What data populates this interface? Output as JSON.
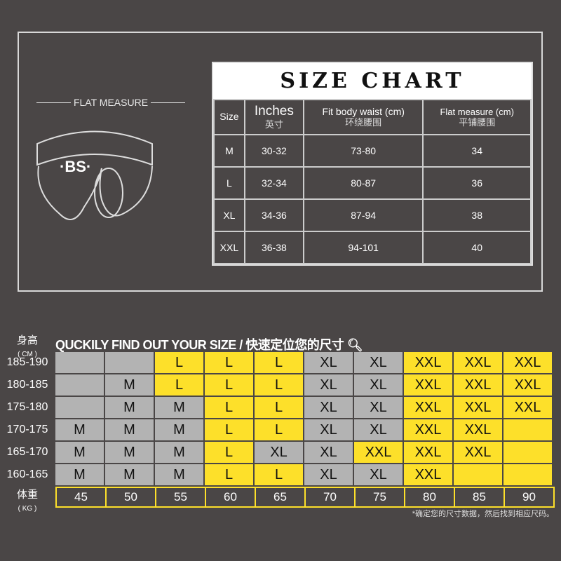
{
  "flat_measure": "FLAT  MEASURE",
  "logo": "BS",
  "size_chart": {
    "title": "SIZE CHART",
    "headers": [
      {
        "en": "Size",
        "zh": ""
      },
      {
        "en": "Inches",
        "zh": "英寸"
      },
      {
        "en": "Fit body waist (cm)",
        "zh": "环绕腰围"
      },
      {
        "en": "Flat measure (cm)",
        "zh": "平铺腰围"
      }
    ],
    "rows": [
      [
        "M",
        "30-32",
        "73-80",
        "34"
      ],
      [
        "L",
        "32-34",
        "80-87",
        "36"
      ],
      [
        "XL",
        "34-36",
        "87-94",
        "38"
      ],
      [
        "XXL",
        "36-38",
        "94-101",
        "40"
      ]
    ]
  },
  "finder": {
    "height_label": "身高",
    "height_unit": "( CM )",
    "heading": "QUCKILY FIND OUT YOUR SIZE / 快速定位您的尺寸",
    "search_icon": "magnifier-icon",
    "weight_label": "体重",
    "weight_unit": "( KG )",
    "weights": [
      "45",
      "50",
      "55",
      "60",
      "65",
      "70",
      "75",
      "80",
      "85",
      "90"
    ],
    "rows": [
      {
        "height": "185-190",
        "cells": [
          [
            "",
            "g"
          ],
          [
            "",
            "g"
          ],
          [
            "L",
            "y"
          ],
          [
            "L",
            "y"
          ],
          [
            "L",
            "y"
          ],
          [
            "XL",
            "g"
          ],
          [
            "XL",
            "g"
          ],
          [
            "XXL",
            "y"
          ],
          [
            "XXL",
            "y"
          ],
          [
            "XXL",
            "y"
          ]
        ]
      },
      {
        "height": "180-185",
        "cells": [
          [
            "",
            "g"
          ],
          [
            "M",
            "g"
          ],
          [
            "L",
            "y"
          ],
          [
            "L",
            "y"
          ],
          [
            "L",
            "y"
          ],
          [
            "XL",
            "g"
          ],
          [
            "XL",
            "g"
          ],
          [
            "XXL",
            "y"
          ],
          [
            "XXL",
            "y"
          ],
          [
            "XXL",
            "y"
          ]
        ]
      },
      {
        "height": "175-180",
        "cells": [
          [
            "",
            "g"
          ],
          [
            "M",
            "g"
          ],
          [
            "M",
            "g"
          ],
          [
            "L",
            "y"
          ],
          [
            "L",
            "y"
          ],
          [
            "XL",
            "g"
          ],
          [
            "XL",
            "g"
          ],
          [
            "XXL",
            "y"
          ],
          [
            "XXL",
            "y"
          ],
          [
            "XXL",
            "y"
          ]
        ]
      },
      {
        "height": "170-175",
        "cells": [
          [
            "M",
            "g"
          ],
          [
            "M",
            "g"
          ],
          [
            "M",
            "g"
          ],
          [
            "L",
            "y"
          ],
          [
            "L",
            "y"
          ],
          [
            "XL",
            "g"
          ],
          [
            "XL",
            "g"
          ],
          [
            "XXL",
            "y"
          ],
          [
            "XXL",
            "y"
          ],
          [
            "",
            "y"
          ]
        ]
      },
      {
        "height": "165-170",
        "cells": [
          [
            "M",
            "g"
          ],
          [
            "M",
            "g"
          ],
          [
            "M",
            "g"
          ],
          [
            "L",
            "y"
          ],
          [
            "XL",
            "g"
          ],
          [
            "XL",
            "g"
          ],
          [
            "XXL",
            "y"
          ],
          [
            "XXL",
            "y"
          ],
          [
            "XXL",
            "y"
          ],
          [
            "",
            "y"
          ]
        ]
      },
      {
        "height": "160-165",
        "cells": [
          [
            "M",
            "g"
          ],
          [
            "M",
            "g"
          ],
          [
            "M",
            "g"
          ],
          [
            "L",
            "y"
          ],
          [
            "L",
            "y"
          ],
          [
            "XL",
            "g"
          ],
          [
            "XL",
            "g"
          ],
          [
            "XXL",
            "y"
          ],
          [
            "",
            "y"
          ],
          [
            "",
            "y"
          ]
        ]
      }
    ],
    "note": "*确定您的尺寸数据，然后找到相应尺码。",
    "colors": {
      "gray": "#b3b3b3",
      "yellow": "#fde02a",
      "background": "#4a4646"
    }
  }
}
